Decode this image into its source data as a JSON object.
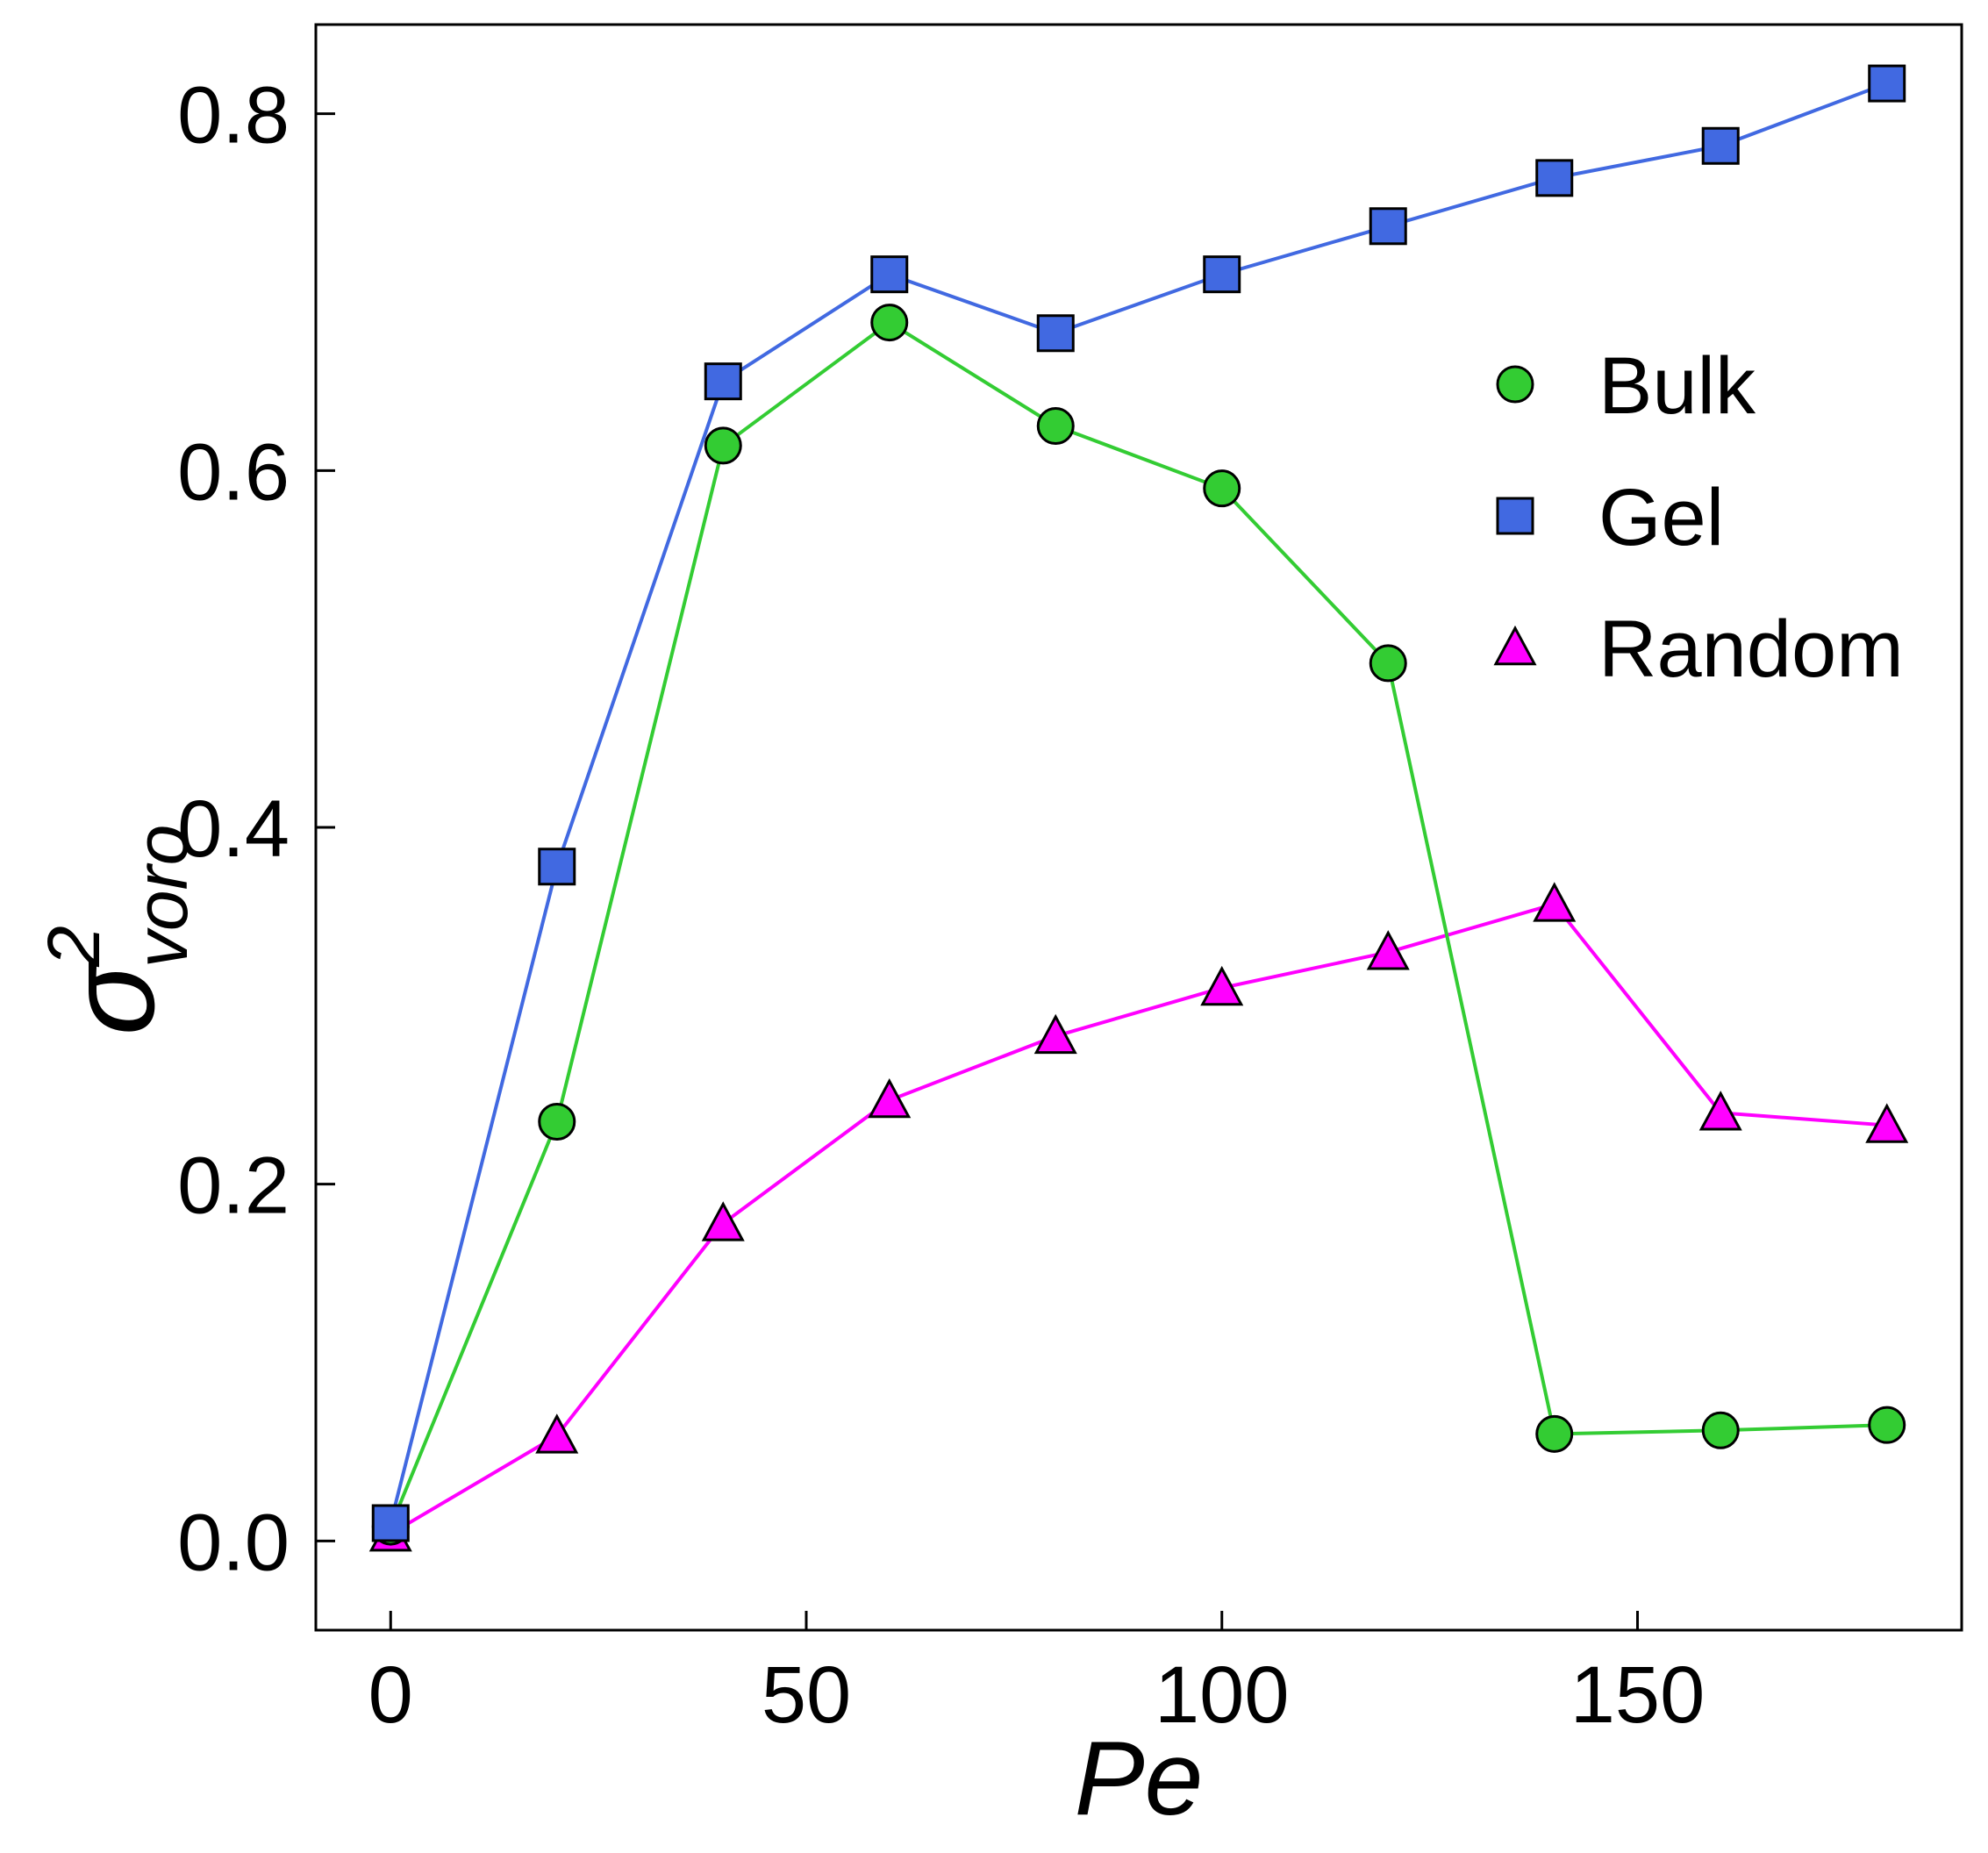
{
  "chart_data": {
    "type": "line",
    "title": "",
    "xlabel": "Pe",
    "ylabel_base": "σ",
    "ylabel_sup": "2",
    "ylabel_sub": "voro",
    "x": [
      0,
      20,
      40,
      60,
      80,
      100,
      120,
      140,
      160,
      180
    ],
    "xlim": [
      -9,
      189
    ],
    "ylim": [
      -0.05,
      0.85
    ],
    "xticks": [
      0,
      50,
      100,
      150
    ],
    "xtick_labels": [
      "0",
      "50",
      "100",
      "150"
    ],
    "yticks": [
      0.0,
      0.2,
      0.4,
      0.6,
      0.8
    ],
    "ytick_labels": [
      "0.0",
      "0.2",
      "0.4",
      "0.6",
      "0.8"
    ],
    "grid": false,
    "legend_position": "upper-right",
    "series": [
      {
        "name": "Bulk",
        "marker": "circle",
        "color": "#33cc33",
        "values": [
          0.008,
          0.235,
          0.614,
          0.683,
          0.625,
          0.59,
          0.492,
          0.06,
          0.062,
          0.065
        ]
      },
      {
        "name": "Gel",
        "marker": "square",
        "color": "#4169e1",
        "values": [
          0.01,
          0.378,
          0.65,
          0.71,
          0.677,
          0.71,
          0.737,
          0.764,
          0.782,
          0.817
        ]
      },
      {
        "name": "Random",
        "marker": "triangle",
        "color": "#ff00ff",
        "values": [
          0.004,
          0.059,
          0.178,
          0.247,
          0.283,
          0.31,
          0.33,
          0.357,
          0.24,
          0.233
        ]
      }
    ]
  }
}
